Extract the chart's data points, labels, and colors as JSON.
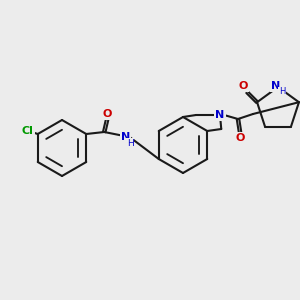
{
  "bg_color": "#ececec",
  "bond_color": "#1a1a1a",
  "bond_lw": 1.5,
  "atom_colors": {
    "N": "#0000cc",
    "O": "#cc0000",
    "Cl": "#009900",
    "C": "#1a1a1a"
  },
  "font_size": 7.5,
  "figsize": [
    3.0,
    3.0
  ],
  "dpi": 100
}
